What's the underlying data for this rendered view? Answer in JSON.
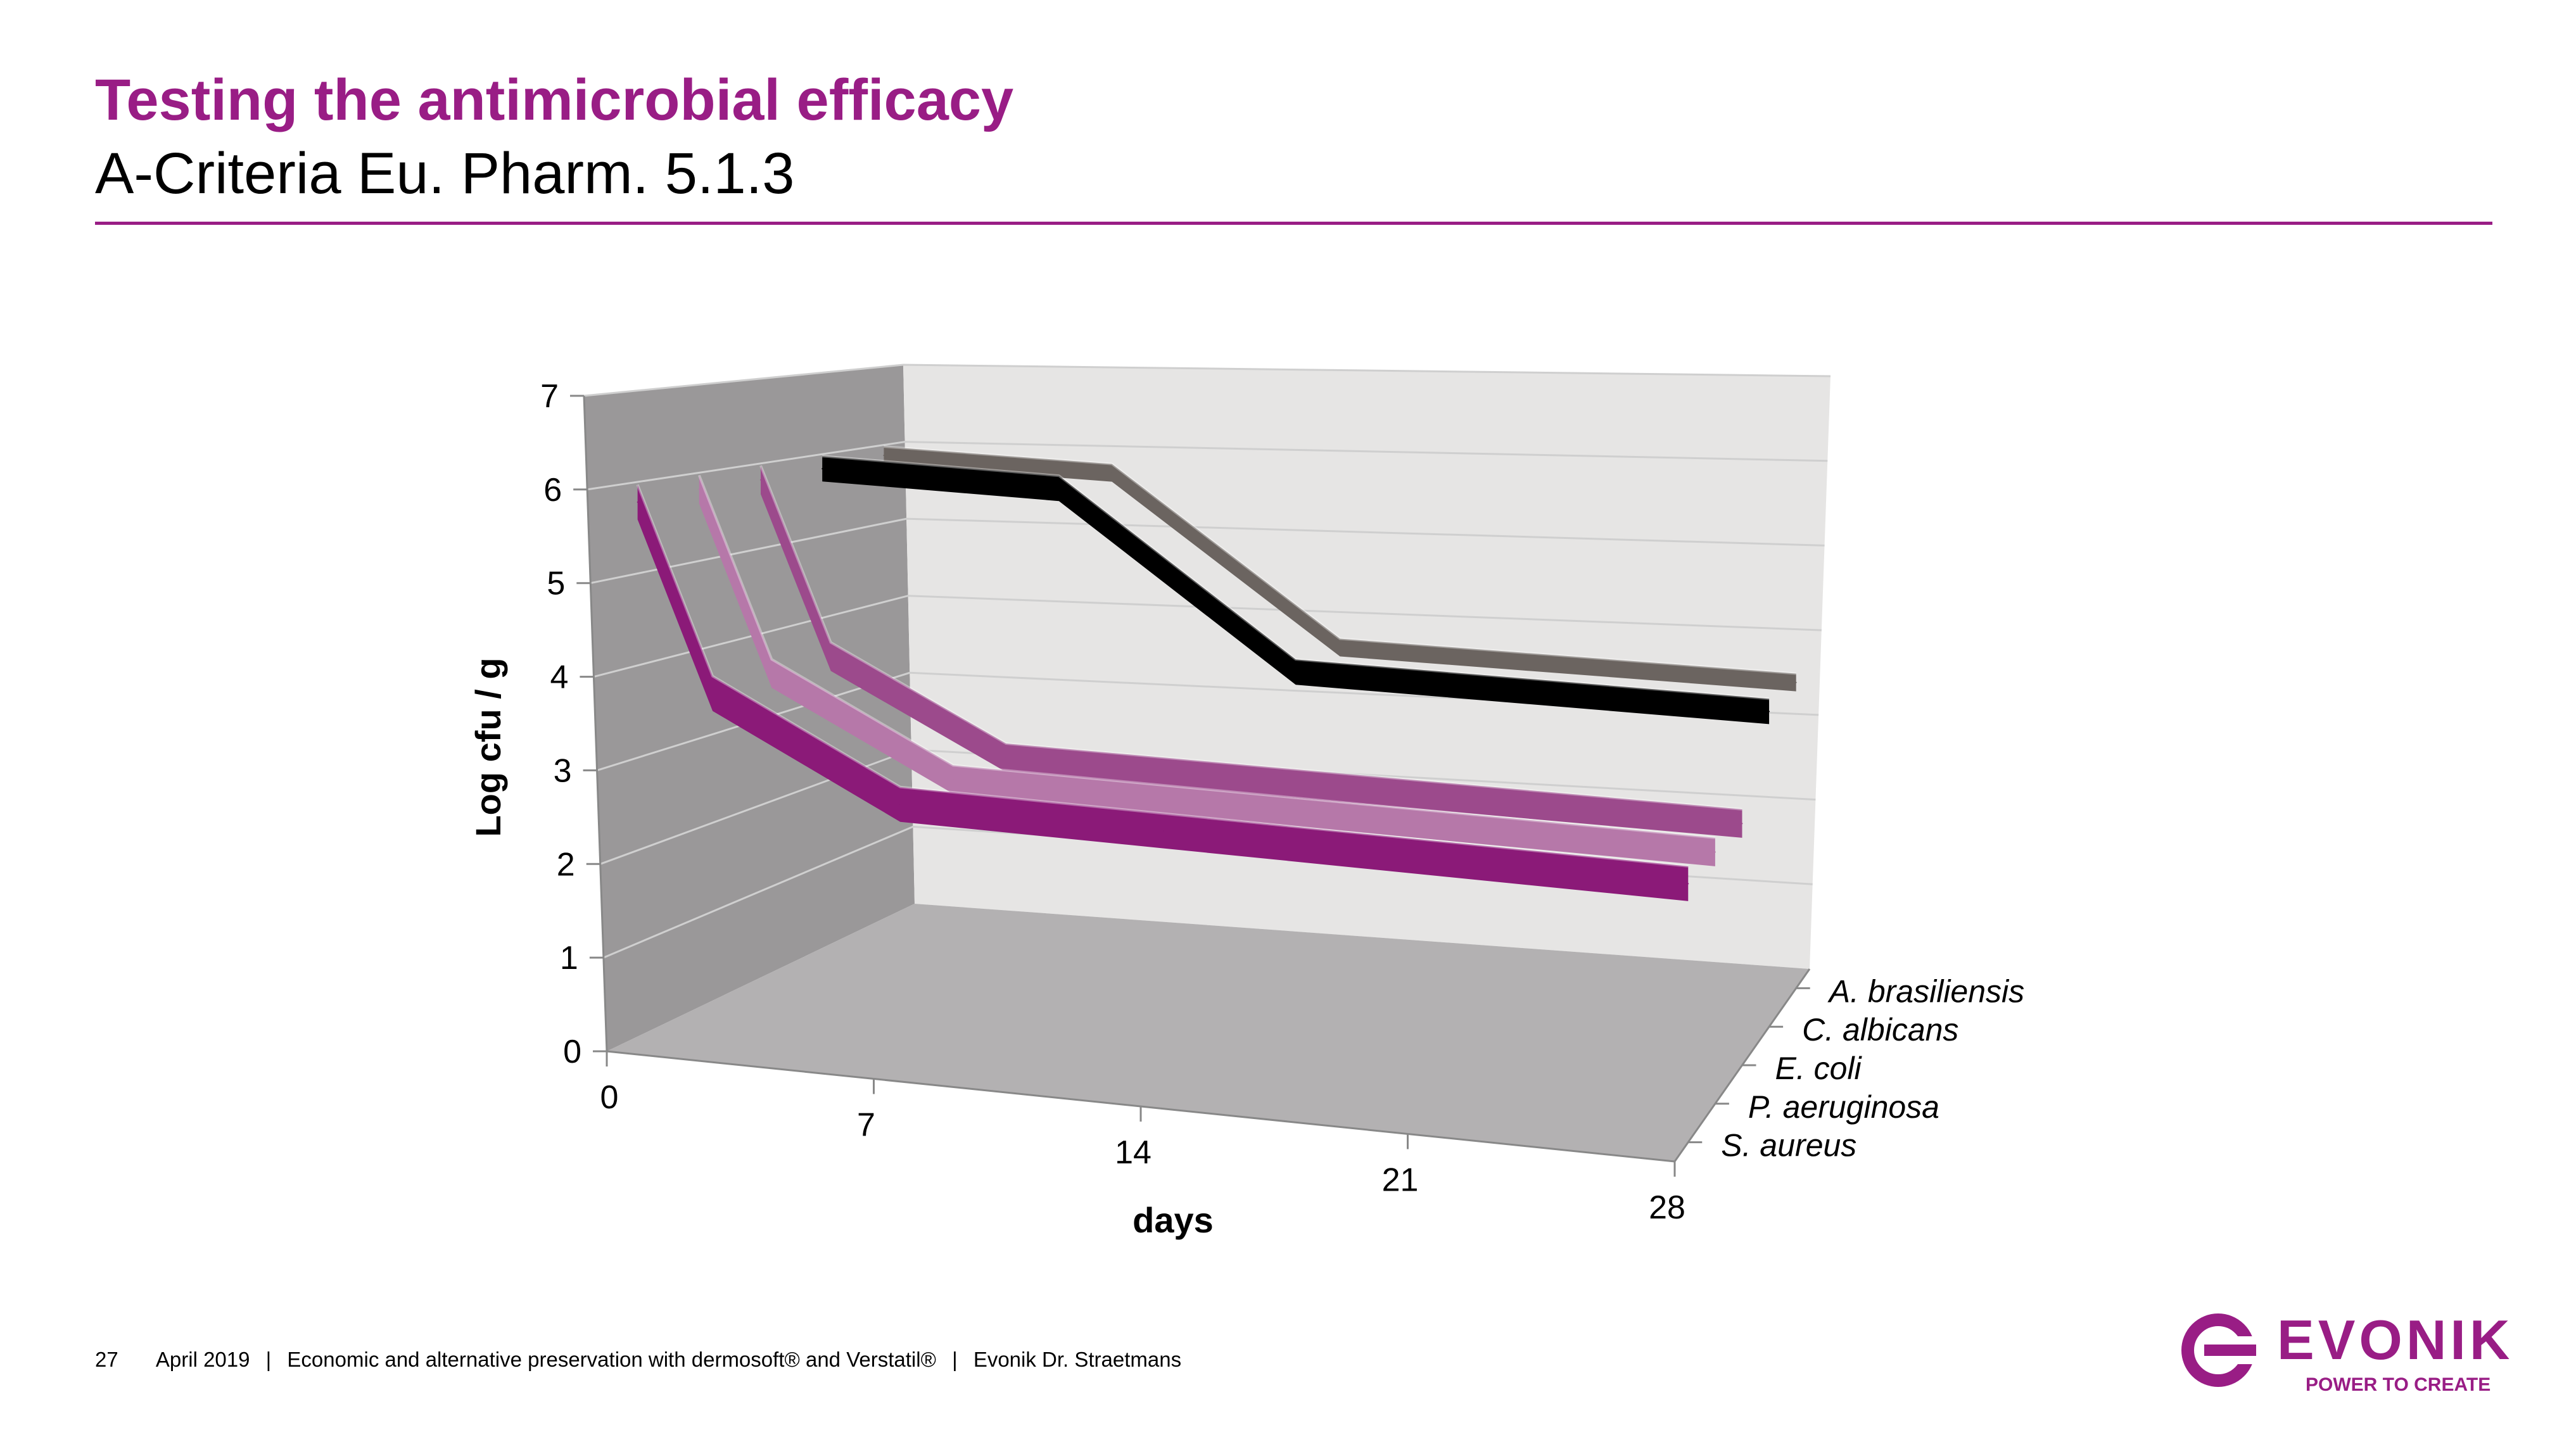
{
  "slide": {
    "title": "Testing the antimicrobial efficacy",
    "subtitle": "A-Criteria Eu. Pharm. 5.1.3",
    "accent_color": "#991d85"
  },
  "chart_data": {
    "type": "line",
    "style": "3d",
    "ylabel": "Log cfu / g",
    "xlabel": "days",
    "ylim": [
      0,
      7
    ],
    "yticks": [
      0,
      1,
      2,
      3,
      4,
      5,
      6,
      7
    ],
    "categories": [
      "0",
      "7",
      "14",
      "21",
      "28"
    ],
    "x": [
      0,
      2,
      7,
      14,
      28
    ],
    "grid": true,
    "series": [
      {
        "name": "S. aureus",
        "values": [
          6,
          4,
          3,
          3,
          3
        ],
        "color": "#8b1a78"
      },
      {
        "name": "P. aeruginosa",
        "values": [
          6,
          4,
          3,
          3,
          3
        ],
        "color": "#b678a9"
      },
      {
        "name": "E. coli",
        "values": [
          6,
          4,
          3,
          3,
          3
        ],
        "color": "#9c4a8c"
      },
      {
        "name": "C. albicans",
        "values": [
          6,
          6,
          6,
          4,
          4
        ],
        "color": "#000000"
      },
      {
        "name": "A. brasiliensis",
        "values": [
          6,
          6,
          6,
          4,
          4
        ],
        "color": "#6b6460"
      }
    ]
  },
  "footer": {
    "page_number": "27",
    "date": "April 2019",
    "separator": "|",
    "topic": "Economic and alternative preservation with dermosoft® and Verstatil®",
    "author": "Evonik Dr. Straetmans"
  },
  "logo": {
    "name": "EVONIK",
    "tagline": "POWER TO CREATE"
  }
}
